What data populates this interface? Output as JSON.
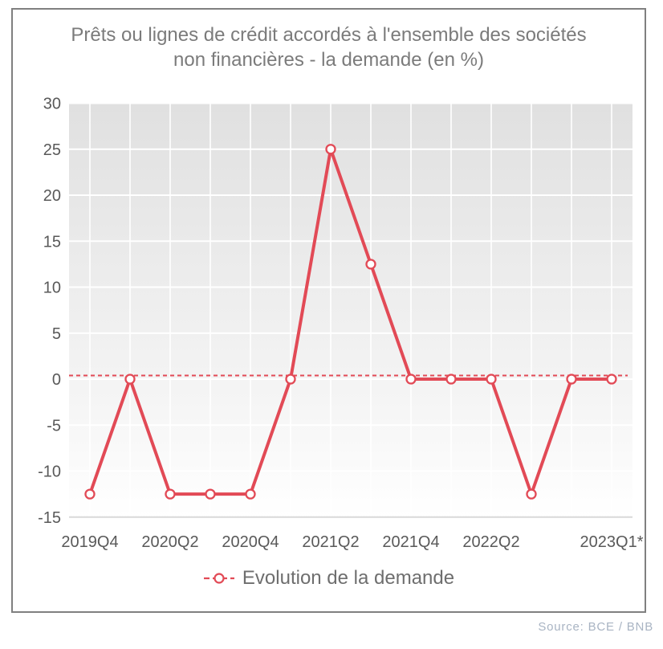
{
  "chart": {
    "title_line1": "Prêts ou lignes de crédit accordés à l'ensemble des sociétés",
    "title_line2": "non financières - la demande (en %)",
    "legend_label": "Evolution de la demande",
    "source": "Source: BCE / BNB"
  },
  "colors": {
    "line": "#e24a56",
    "marker_fill": "#ffffff",
    "zero_line": "#e24a56",
    "grid": "#ffffff",
    "axis_bottom": "#d9d9d9",
    "tick_text": "#595959",
    "plot_bg_top": "#e0e0e0",
    "plot_bg_mid": "#f5f5f5",
    "plot_bg_bottom": "#ffffff",
    "box_border": "#808080",
    "title_text": "#7b7b7b",
    "legend_text": "#6e6e6e",
    "source_text": "#a9b4c3"
  },
  "chart_data": {
    "type": "line",
    "title": "Prêts ou lignes de crédit accordés à l'ensemble des sociétés non financières - la demande (en %)",
    "categories": [
      "2019Q4",
      "2020Q1",
      "2020Q2",
      "2020Q3",
      "2020Q4",
      "2021Q1",
      "2021Q2",
      "2021Q3",
      "2021Q4",
      "2022Q1",
      "2022Q2",
      "2022Q3",
      "2022Q4",
      "2023Q1"
    ],
    "series": [
      {
        "name": "Evolution de la demande",
        "values": [
          -12.5,
          0,
          -12.5,
          -12.5,
          -12.5,
          0,
          25,
          12.5,
          0,
          0,
          0,
          -12.5,
          0,
          0
        ]
      }
    ],
    "x_tick_labels": [
      "2019Q4",
      "2020Q2",
      "2020Q4",
      "2021Q2",
      "2021Q4",
      "2022Q2",
      "2023Q1*"
    ],
    "x_tick_indices": [
      0,
      2,
      4,
      6,
      8,
      10,
      13
    ],
    "y_ticks": [
      30,
      25,
      20,
      15,
      10,
      5,
      0,
      -5,
      -10,
      -15
    ],
    "ylim": [
      -15,
      30
    ],
    "ylabel": "",
    "xlabel": "",
    "zero_line": "dashed",
    "grid": true,
    "marker": "open-circle",
    "legend_position": "bottom"
  }
}
